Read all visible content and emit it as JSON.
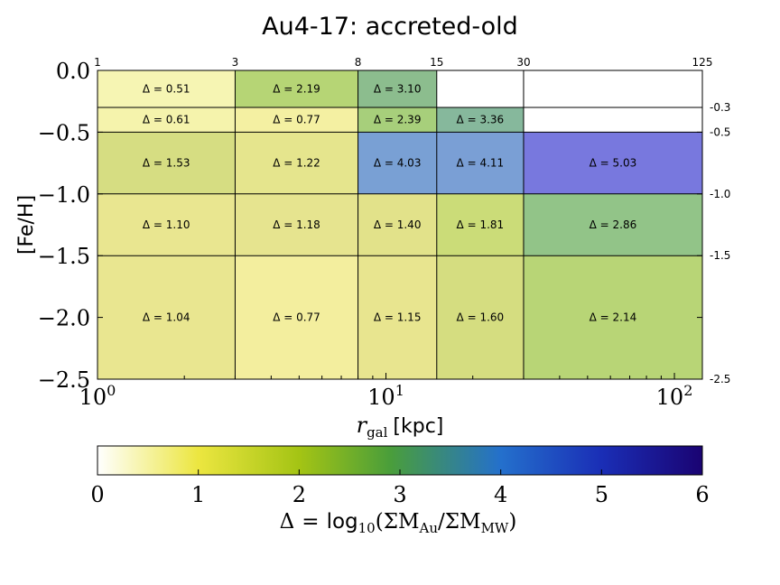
{
  "chart_data": {
    "type": "heatmap",
    "title": "Au4-17: accreted-old",
    "xlabel_main": "r",
    "xlabel_sub": "gal",
    "xlabel_unit": "[kpc]",
    "ylabel": "[Fe/H]",
    "x_scale": "log",
    "xlim": [
      1,
      125
    ],
    "ylim": [
      -2.5,
      0.0
    ],
    "x_ticks": [
      {
        "value": 1,
        "base": "10",
        "exp": "0"
      },
      {
        "value": 10,
        "base": "10",
        "exp": "1"
      },
      {
        "value": 100,
        "base": "10",
        "exp": "2"
      }
    ],
    "y_ticks": [
      {
        "value": 0.0,
        "label": "0.0"
      },
      {
        "value": -0.5,
        "label": "−0.5"
      },
      {
        "value": -1.0,
        "label": "−1.0"
      },
      {
        "value": -1.5,
        "label": "−1.5"
      },
      {
        "value": -2.0,
        "label": "−2.0"
      },
      {
        "value": -2.5,
        "label": "−2.5"
      }
    ],
    "radial_bin_edges": [
      {
        "value": 1,
        "label": "1"
      },
      {
        "value": 3,
        "label": "3"
      },
      {
        "value": 8,
        "label": "8"
      },
      {
        "value": 15,
        "label": "15"
      },
      {
        "value": 30,
        "label": "30"
      },
      {
        "value": 125,
        "label": "125"
      }
    ],
    "feh_bin_edges": [
      {
        "value": -0.3,
        "label": "-0.3"
      },
      {
        "value": -0.5,
        "label": "-0.5"
      },
      {
        "value": -1.0,
        "label": "-1.0"
      },
      {
        "value": -1.5,
        "label": "-1.5"
      },
      {
        "value": -2.5,
        "label": "-2.5"
      }
    ],
    "cells": [
      {
        "r": [
          1,
          3
        ],
        "feh": [
          -0.3,
          0.0
        ],
        "value": 0.51,
        "label": "Δ = 0.51",
        "color": "#f6f5b3"
      },
      {
        "r": [
          3,
          8
        ],
        "feh": [
          -0.3,
          0.0
        ],
        "value": 2.19,
        "label": "Δ = 2.19",
        "color": "#b6d575"
      },
      {
        "r": [
          8,
          15
        ],
        "feh": [
          -0.3,
          0.0
        ],
        "value": 3.1,
        "label": "Δ = 3.10",
        "color": "#8cbd8e"
      },
      {
        "r": [
          1,
          3
        ],
        "feh": [
          -0.5,
          -0.3
        ],
        "value": 0.61,
        "label": "Δ = 0.61",
        "color": "#f5f3ac"
      },
      {
        "r": [
          3,
          8
        ],
        "feh": [
          -0.5,
          -0.3
        ],
        "value": 0.77,
        "label": "Δ = 0.77",
        "color": "#f4f0a2"
      },
      {
        "r": [
          8,
          15
        ],
        "feh": [
          -0.5,
          -0.3
        ],
        "value": 2.39,
        "label": "Δ = 2.39",
        "color": "#a7cf7b"
      },
      {
        "r": [
          15,
          30
        ],
        "feh": [
          -0.5,
          -0.3
        ],
        "value": 3.36,
        "label": "Δ = 3.36",
        "color": "#86b89c"
      },
      {
        "r": [
          1,
          3
        ],
        "feh": [
          -1.0,
          -0.5
        ],
        "value": 1.53,
        "label": "Δ = 1.53",
        "color": "#d6dd82"
      },
      {
        "r": [
          3,
          8
        ],
        "feh": [
          -1.0,
          -0.5
        ],
        "value": 1.22,
        "label": "Δ = 1.22",
        "color": "#e5e58d"
      },
      {
        "r": [
          8,
          15
        ],
        "feh": [
          -1.0,
          -0.5
        ],
        "value": 4.03,
        "label": "Δ = 4.03",
        "color": "#79a0d4"
      },
      {
        "r": [
          15,
          30
        ],
        "feh": [
          -1.0,
          -0.5
        ],
        "value": 4.11,
        "label": "Δ = 4.11",
        "color": "#7a9fd5"
      },
      {
        "r": [
          30,
          125
        ],
        "feh": [
          -1.0,
          -0.5
        ],
        "value": 5.03,
        "label": "Δ = 5.03",
        "color": "#7878de"
      },
      {
        "r": [
          1,
          3
        ],
        "feh": [
          -1.5,
          -1.0
        ],
        "value": 1.1,
        "label": "Δ = 1.10",
        "color": "#e9e690"
      },
      {
        "r": [
          3,
          8
        ],
        "feh": [
          -1.5,
          -1.0
        ],
        "value": 1.18,
        "label": "Δ = 1.18",
        "color": "#e6e48f"
      },
      {
        "r": [
          8,
          15
        ],
        "feh": [
          -1.5,
          -1.0
        ],
        "value": 1.4,
        "label": "Δ = 1.40",
        "color": "#e2e28a"
      },
      {
        "r": [
          15,
          30
        ],
        "feh": [
          -1.5,
          -1.0
        ],
        "value": 1.81,
        "label": "Δ = 1.81",
        "color": "#cbdc78"
      },
      {
        "r": [
          30,
          125
        ],
        "feh": [
          -1.5,
          -1.0
        ],
        "value": 2.86,
        "label": "Δ = 2.86",
        "color": "#92c488"
      },
      {
        "r": [
          1,
          3
        ],
        "feh": [
          -2.5,
          -1.5
        ],
        "value": 1.04,
        "label": "Δ = 1.04",
        "color": "#e9e690"
      },
      {
        "r": [
          3,
          8
        ],
        "feh": [
          -2.5,
          -1.5
        ],
        "value": 0.77,
        "label": "Δ = 0.77",
        "color": "#f3ee9e"
      },
      {
        "r": [
          8,
          15
        ],
        "feh": [
          -2.5,
          -1.5
        ],
        "value": 1.15,
        "label": "Δ = 1.15",
        "color": "#e8e58f"
      },
      {
        "r": [
          15,
          30
        ],
        "feh": [
          -2.5,
          -1.5
        ],
        "value": 1.6,
        "label": "Δ = 1.60",
        "color": "#d5dd80"
      },
      {
        "r": [
          30,
          125
        ],
        "feh": [
          -2.5,
          -1.5
        ],
        "value": 2.14,
        "label": "Δ = 2.14",
        "color": "#b8d576"
      }
    ],
    "colorbar": {
      "range": [
        0,
        6
      ],
      "ticks": [
        0,
        1,
        2,
        3,
        4,
        5,
        6
      ],
      "tick_labels": [
        "0",
        "1",
        "2",
        "3",
        "4",
        "5",
        "6"
      ],
      "orientation": "horizontal",
      "stops": [
        {
          "value": 0.0,
          "color": "#ffffff"
        },
        {
          "value": 1.0,
          "color": "#ece640"
        },
        {
          "value": 2.0,
          "color": "#a4c414"
        },
        {
          "value": 2.9,
          "color": "#4a9e3a"
        },
        {
          "value": 4.0,
          "color": "#2470cc"
        },
        {
          "value": 5.0,
          "color": "#1a2eb6"
        },
        {
          "value": 6.0,
          "color": "#1a0372"
        }
      ],
      "label_lhs": "Δ",
      "label_eq": "=",
      "label_log": "log",
      "label_log_sub": "10",
      "label_open": "(ΣM",
      "label_au": "Au",
      "label_div": "/ΣM",
      "label_mw": "MW",
      "label_close": ")"
    }
  }
}
